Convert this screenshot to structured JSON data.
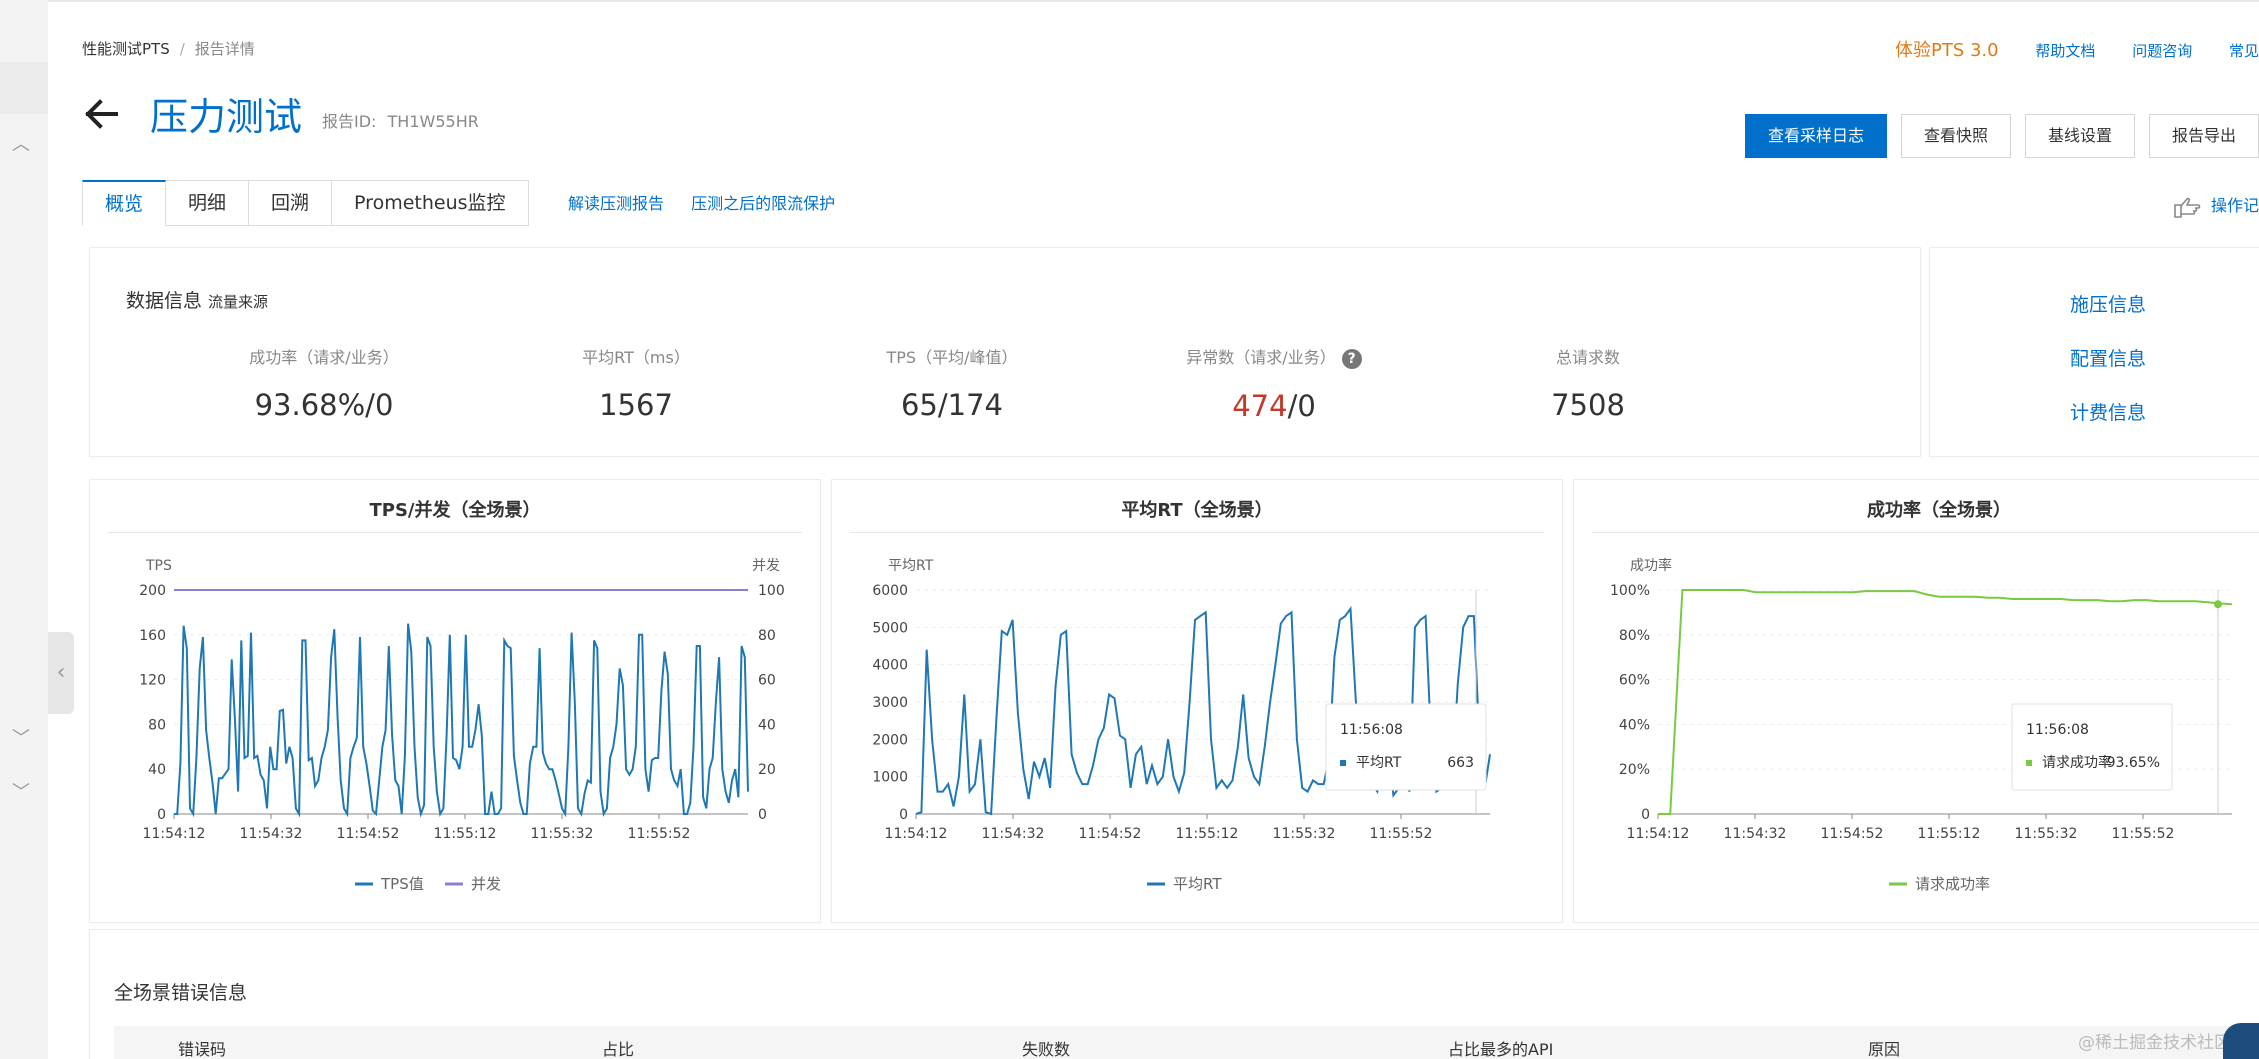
{
  "breadcrumb": {
    "root": "性能测试PTS",
    "sep": "/",
    "current": "报告详情"
  },
  "top_links": {
    "try_pts": "体验PTS 3.0",
    "help_docs": "帮助文档",
    "consult": "问题咨询",
    "faq": "常见"
  },
  "header": {
    "title": "压力测试",
    "report_id_label": "报告ID:",
    "report_id": "TH1W55HR"
  },
  "actions": {
    "sample_log": "查看采样日志",
    "snapshot": "查看快照",
    "baseline": "基线设置",
    "export": "报告导出"
  },
  "tabs": [
    {
      "label": "概览",
      "active": true
    },
    {
      "label": "明细",
      "active": false
    },
    {
      "label": "回溯",
      "active": false
    },
    {
      "label": "Prometheus监控",
      "active": false
    }
  ],
  "tab_links": {
    "interpret": "解读压测报告",
    "throttle": "压测之后的限流保护"
  },
  "op_log": "操作记",
  "data_info": {
    "title": "数据信息",
    "source": "流量来源",
    "metrics": [
      {
        "label": "成功率（请求/业务）",
        "value": "93.68%/0"
      },
      {
        "label": "平均RT（ms）",
        "value": "1567"
      },
      {
        "label": "TPS（平均/峰值）",
        "value": "65/174"
      },
      {
        "label": "异常数（请求/业务）",
        "value_red": "474",
        "value_rest": "/0",
        "help": "?"
      },
      {
        "label": "总请求数",
        "value": "7508"
      }
    ]
  },
  "side_links": [
    "施压信息",
    "配置信息",
    "计费信息"
  ],
  "colors": {
    "brand": "#0070cc",
    "tps": "#1f78b4",
    "concurrency": "#8c7fd0",
    "success": "#7ac943",
    "error": "#c0392b",
    "orange": "#e07b14"
  },
  "chart_data": [
    {
      "type": "line",
      "title": "TPS/并发（全场景）",
      "ylabel": "TPS",
      "y2label": "并发",
      "ylim": [
        0,
        200
      ],
      "y2lim": [
        0,
        100
      ],
      "yticks": [
        0,
        40,
        80,
        120,
        160,
        200
      ],
      "y2ticks": [
        0,
        20,
        40,
        60,
        80,
        100
      ],
      "x_ticks": [
        "11:54:12",
        "11:54:32",
        "11:54:52",
        "11:55:12",
        "11:55:32",
        "11:55:52"
      ],
      "series": [
        {
          "name": "TPS值",
          "axis": "left",
          "values": [
            0,
            0,
            45,
            168,
            148,
            5,
            0,
            50,
            130,
            158,
            75,
            50,
            28,
            0,
            32,
            32,
            36,
            40,
            138,
            85,
            20,
            155,
            50,
            52,
            162,
            50,
            52,
            35,
            30,
            5,
            60,
            40,
            40,
            92,
            93,
            45,
            60,
            50,
            5,
            0,
            155,
            155,
            48,
            50,
            25,
            30,
            50,
            60,
            75,
            140,
            165,
            88,
            30,
            5,
            0,
            50,
            60,
            68,
            158,
            60,
            45,
            25,
            3,
            0,
            30,
            60,
            75,
            150,
            70,
            30,
            25,
            0,
            52,
            170,
            145,
            60,
            15,
            0,
            8,
            158,
            150,
            60,
            20,
            0,
            5,
            70,
            160,
            50,
            48,
            40,
            60,
            160,
            60,
            60,
            75,
            98,
            70,
            0,
            0,
            20,
            0,
            0,
            5,
            155,
            150,
            148,
            52,
            30,
            10,
            0,
            0,
            45,
            60,
            60,
            148,
            55,
            45,
            40,
            40,
            30,
            18,
            5,
            0,
            60,
            162,
            100,
            5,
            0,
            18,
            30,
            28,
            155,
            148,
            20,
            0,
            5,
            50,
            60,
            80,
            130,
            115,
            40,
            35,
            40,
            60,
            160,
            160,
            40,
            20,
            48,
            50,
            50,
            110,
            145,
            125,
            40,
            30,
            25,
            40,
            0,
            0,
            10,
            60,
            150,
            150,
            15,
            5,
            40,
            50,
            100,
            140,
            40,
            20,
            10,
            30,
            40,
            15,
            150,
            140,
            20
          ]
        },
        {
          "name": "并发",
          "axis": "right",
          "values": [
            100,
            100
          ]
        }
      ]
    },
    {
      "type": "line",
      "title": "平均RT（全场景）",
      "ylabel": "平均RT",
      "ylim": [
        0,
        6000
      ],
      "yticks": [
        0,
        1000,
        2000,
        3000,
        4000,
        5000,
        6000
      ],
      "x_ticks": [
        "11:54:12",
        "11:54:32",
        "11:54:52",
        "11:55:12",
        "11:55:32",
        "11:55:52"
      ],
      "series": [
        {
          "name": "平均RT",
          "values": [
            0,
            50,
            4400,
            2000,
            600,
            600,
            800,
            200,
            1000,
            3200,
            600,
            800,
            2000,
            50,
            0,
            2600,
            4900,
            4800,
            5200,
            2700,
            1200,
            400,
            1400,
            1000,
            1500,
            700,
            3400,
            4800,
            4900,
            1600,
            1100,
            800,
            800,
            1300,
            2000,
            2300,
            3200,
            3100,
            2100,
            2000,
            700,
            1600,
            1800,
            800,
            1300,
            800,
            1000,
            2000,
            1000,
            600,
            1100,
            3000,
            5200,
            5300,
            5400,
            2000,
            700,
            900,
            700,
            900,
            1800,
            3200,
            1500,
            1000,
            800,
            1800,
            3000,
            4000,
            5100,
            5300,
            5400,
            2000,
            700,
            600,
            900,
            800,
            800,
            1500,
            4200,
            5200,
            5300,
            5500,
            3000,
            900,
            700,
            800,
            600,
            1500,
            1800,
            500,
            700,
            1000,
            600,
            5000,
            5200,
            5300,
            2000,
            600,
            700,
            1300,
            1000,
            3500,
            5000,
            5300,
            5300,
            2000,
            663,
            1600
          ]
        }
      ],
      "tooltip": {
        "time": "11:56:08",
        "series": "平均RT",
        "value": "663"
      }
    },
    {
      "type": "line",
      "title": "成功率（全场景）",
      "ylabel": "成功率",
      "ylim": [
        0,
        100
      ],
      "yticks": [
        "0",
        "20%",
        "40%",
        "60%",
        "80%",
        "100%"
      ],
      "x_ticks": [
        "11:54:12",
        "11:54:32",
        "11:54:52",
        "11:55:12",
        "11:55:32",
        "11:55:52"
      ],
      "series": [
        {
          "name": "请求成功率",
          "values": [
            0,
            0,
            100,
            100,
            100,
            100,
            100,
            100,
            99,
            99,
            99,
            99,
            99,
            99,
            99,
            99,
            99,
            99.5,
            99.5,
            99.5,
            99.5,
            99.5,
            98,
            97,
            97,
            97,
            97,
            96.5,
            96.5,
            96,
            96,
            96,
            96,
            96,
            95.5,
            95.5,
            95.5,
            95,
            95,
            95.5,
            95.5,
            95,
            95,
            95,
            95,
            94.5,
            94,
            93.65
          ]
        }
      ],
      "tooltip": {
        "time": "11:56:08",
        "series": "请求成功率",
        "value": "93.65%"
      }
    }
  ],
  "error_info": {
    "title": "全场景错误信息",
    "columns": [
      "错误码",
      "占比",
      "失败数",
      "占比最多的API",
      "原因"
    ]
  },
  "watermark": "@稀土掘金技术社区"
}
